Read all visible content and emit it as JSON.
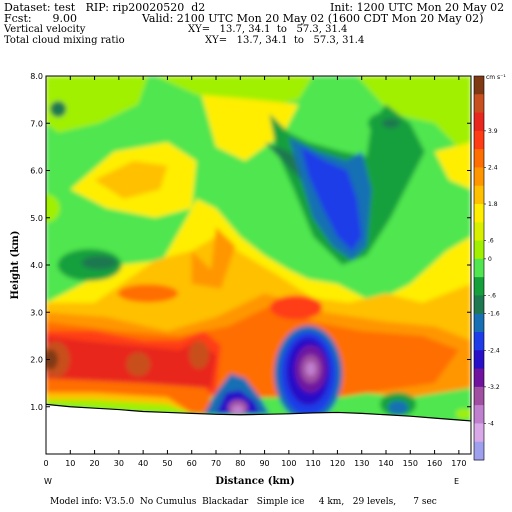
{
  "header": {
    "dataset_line": "Dataset: test   RIP: rip20020520  d2",
    "init_line": "Init: 1200 UTC Mon 20 May 02",
    "fcst_line": "Fcst:      9.00",
    "valid_line": "Valid: 2100 UTC Mon 20 May 02 (1600 CDT Mon 20 May 02)",
    "var1_name": "Vertical velocity",
    "var1_xy": "XY=   13.7, 34.1  to   57.3, 31.4",
    "var2_name": "Total cloud mixing ratio",
    "var2_xy": "XY=   13.7, 34.1  to   57.3, 31.4"
  },
  "footer": {
    "model_info": "Model info: V3.5.0  No Cumulus  Blackadar   Simple ice     4 km,   29 levels,      7 sec"
  },
  "chart_data": {
    "type": "heatmap",
    "title": "Vertical velocity",
    "xlabel": "Distance  (km)",
    "ylabel": "Height  (km)",
    "xlim": [
      0,
      175
    ],
    "ylim": [
      0,
      8
    ],
    "x_ticks": [
      0,
      10,
      20,
      30,
      40,
      50,
      60,
      70,
      80,
      90,
      100,
      110,
      120,
      130,
      140,
      150,
      160,
      170
    ],
    "y_ticks": [
      0,
      1,
      2,
      3,
      4,
      5,
      6,
      7,
      8
    ],
    "y_tick_labels": [
      "0.0",
      "1.0",
      "2.0",
      "3.0",
      "4.0",
      "5.0",
      "6.0",
      "7.0",
      "8.0"
    ],
    "x_end_labels": {
      "left": "W",
      "right": "E"
    },
    "colorbar": {
      "unit": "cm s⁻¹",
      "labels": [
        "3.9",
        "2.4",
        "1.8",
        ".6",
        "0",
        "-.6",
        "-1.6",
        "-2.4",
        "-3.2",
        "-4"
      ],
      "colors": [
        "#7f3a14",
        "#c8501e",
        "#e8281e",
        "#ff3c14",
        "#ff6e00",
        "#ff9600",
        "#ffc000",
        "#ffee00",
        "#d8f000",
        "#a0f000",
        "#50e650",
        "#16a03c",
        "#1e7850",
        "#1870b4",
        "#1e3ce8",
        "#2810c8",
        "#7014a0",
        "#a050a0",
        "#c080d0",
        "#d8a8e8",
        "#9ea0ee"
      ]
    },
    "terrain": {
      "distance_km": [
        0,
        10,
        20,
        30,
        40,
        50,
        60,
        70,
        80,
        90,
        100,
        110,
        120,
        130,
        140,
        150,
        160,
        170,
        175
      ],
      "height_km": [
        1.05,
        1.0,
        0.97,
        0.94,
        0.9,
        0.88,
        0.86,
        0.84,
        0.83,
        0.84,
        0.85,
        0.87,
        0.88,
        0.86,
        0.83,
        0.8,
        0.76,
        0.72,
        0.7
      ]
    },
    "features": [
      {
        "kind": "updraft",
        "x_km": 5,
        "z_km": 2.0,
        "level": "2.4"
      },
      {
        "kind": "updraft",
        "x_km": 37,
        "z_km": 1.9,
        "level": "2.4"
      },
      {
        "kind": "updraft",
        "x_km": 63,
        "z_km": 2.1,
        "level": "2.4"
      },
      {
        "kind": "downdraft",
        "x_km": 78,
        "z_km": 1.0,
        "level": "-4"
      },
      {
        "kind": "downdraft",
        "x_km": 108,
        "z_km": 1.8,
        "level": "-3.2"
      },
      {
        "kind": "downdraft",
        "x_km": 145,
        "z_km": 0.95,
        "level": "-.6"
      },
      {
        "kind": "downdraft",
        "x_km": 120,
        "z_km": 5.6,
        "level": "-1.6"
      },
      {
        "kind": "downdraft",
        "x_km": 15,
        "z_km": 4.0,
        "level": "-.6"
      }
    ]
  }
}
